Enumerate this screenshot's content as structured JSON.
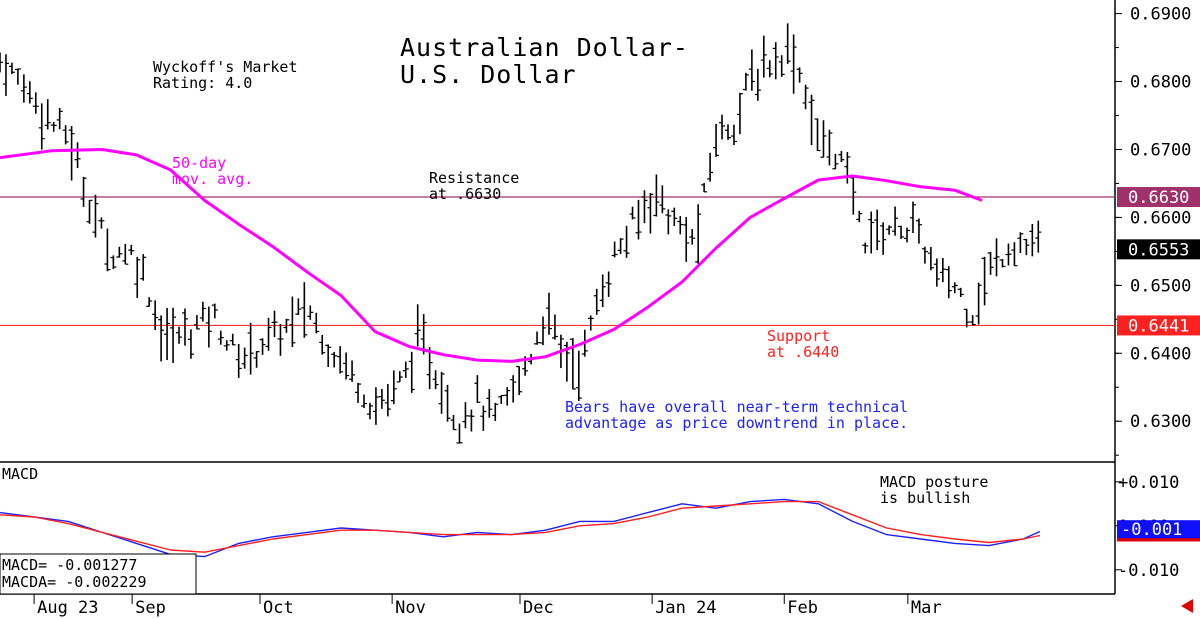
{
  "chart_data": [
    {
      "type": "ohlc",
      "title": "Australian Dollar-\nU.S. Dollar",
      "subtitle": "Wyckoff's Market\nRating: 4.0",
      "y_ticks": [
        0.63,
        0.64,
        0.65,
        0.66,
        0.67,
        0.68,
        0.69
      ],
      "y_tick_labels": [
        "0.6300",
        "0.6400",
        "0.6500",
        "0.6600",
        "0.6700",
        "0.6800",
        "0.6900"
      ],
      "ylim": [
        0.624,
        0.692
      ],
      "x_labels": [
        "Aug 23",
        "Sep",
        "Oct",
        "Nov",
        "Dec",
        "Jan 24",
        "Feb",
        "Mar"
      ],
      "horizontal_lines": [
        {
          "value": 0.663,
          "tag": "0.6630",
          "color": "#a0306a",
          "tag_bg": "#a0306a"
        },
        {
          "value": 0.6441,
          "tag": "0.6441",
          "color": "#ff3030",
          "tag_bg": "#ff2020"
        }
      ],
      "last_price": {
        "value": 0.6553,
        "tag": "0.6553",
        "tag_bg": "#000000"
      },
      "annotations": {
        "ma_label": "50-day\nmov. avg.",
        "resistance": "Resistance\nat .6630",
        "support": "Support\nat .6440",
        "comment": "Bears have overall near-term technical\nadvantage as price downtrend in place."
      },
      "colors": {
        "price_bars": "#000000",
        "moving_average": "#ff00ff",
        "comment": "#2020ff",
        "support_text": "#ff2020"
      },
      "moving_average_50d": [
        [
          0,
          0.6688
        ],
        [
          15,
          0.6698
        ],
        [
          30,
          0.67
        ],
        [
          40,
          0.6692
        ],
        [
          50,
          0.667
        ],
        [
          60,
          0.6625
        ],
        [
          70,
          0.659
        ],
        [
          80,
          0.6557
        ],
        [
          90,
          0.652
        ],
        [
          100,
          0.6485
        ],
        [
          110,
          0.6432
        ],
        [
          120,
          0.641
        ],
        [
          130,
          0.6398
        ],
        [
          140,
          0.639
        ],
        [
          150,
          0.6388
        ],
        [
          160,
          0.6395
        ],
        [
          170,
          0.6413
        ],
        [
          180,
          0.6435
        ],
        [
          190,
          0.6468
        ],
        [
          200,
          0.6505
        ],
        [
          210,
          0.6555
        ],
        [
          220,
          0.66
        ],
        [
          230,
          0.6628
        ],
        [
          240,
          0.6655
        ],
        [
          250,
          0.6661
        ],
        [
          260,
          0.6654
        ],
        [
          270,
          0.6645
        ],
        [
          280,
          0.664
        ],
        [
          288,
          0.6625
        ]
      ],
      "price_path": [
        [
          0,
          0.683
        ],
        [
          8,
          0.679
        ],
        [
          15,
          0.674
        ],
        [
          20,
          0.672
        ],
        [
          25,
          0.664
        ],
        [
          32,
          0.655
        ],
        [
          38,
          0.655
        ],
        [
          42,
          0.652
        ],
        [
          48,
          0.642
        ],
        [
          55,
          0.643
        ],
        [
          62,
          0.646
        ],
        [
          70,
          0.639
        ],
        [
          78,
          0.642
        ],
        [
          85,
          0.644
        ],
        [
          90,
          0.647
        ],
        [
          95,
          0.642
        ],
        [
          102,
          0.638
        ],
        [
          110,
          0.632
        ],
        [
          118,
          0.636
        ],
        [
          123,
          0.642
        ],
        [
          128,
          0.637
        ],
        [
          134,
          0.63
        ],
        [
          140,
          0.633
        ],
        [
          145,
          0.63
        ],
        [
          150,
          0.634
        ],
        [
          155,
          0.639
        ],
        [
          160,
          0.646
        ],
        [
          165,
          0.64
        ],
        [
          170,
          0.638
        ],
        [
          175,
          0.647
        ],
        [
          180,
          0.654
        ],
        [
          186,
          0.659
        ],
        [
          192,
          0.664
        ],
        [
          198,
          0.659
        ],
        [
          204,
          0.656
        ],
        [
          210,
          0.672
        ],
        [
          215,
          0.674
        ],
        [
          220,
          0.68
        ],
        [
          226,
          0.683
        ],
        [
          232,
          0.685
        ],
        [
          236,
          0.679
        ],
        [
          240,
          0.671
        ],
        [
          245,
          0.67
        ],
        [
          250,
          0.664
        ],
        [
          253,
          0.657
        ],
        [
          258,
          0.658
        ],
        [
          265,
          0.659
        ],
        [
          270,
          0.657
        ],
        [
          275,
          0.651
        ],
        [
          280,
          0.65
        ],
        [
          285,
          0.646
        ],
        [
          290,
          0.652
        ],
        [
          296,
          0.656
        ],
        [
          300,
          0.656
        ],
        [
          305,
          0.6553
        ]
      ]
    },
    {
      "type": "line",
      "title": "MACD",
      "y_ticks": [
        0.01,
        0.0,
        -0.01
      ],
      "y_tick_labels": [
        "+0.010",
        "0.000",
        "-0.010"
      ],
      "ylim": [
        -0.0155,
        0.0145
      ],
      "annotation": "MACD posture\nis bullish",
      "readout": [
        {
          "label": "MACD=",
          "value": "-0.001277"
        },
        {
          "label": "MACDA=",
          "value": "-0.002229"
        }
      ],
      "current_tag": {
        "value": -0.001,
        "tag": "-0.001",
        "tag_bg": "#1010ff"
      },
      "signal_tag": {
        "value": -0.0022,
        "tag_bg": "#e00000"
      },
      "series": [
        {
          "name": "MACD",
          "color": "#2020ff",
          "points": [
            [
              0,
              0.003
            ],
            [
              10,
              0.002
            ],
            [
              20,
              0.001
            ],
            [
              30,
              -0.0015
            ],
            [
              40,
              -0.004
            ],
            [
              50,
              -0.0065
            ],
            [
              60,
              -0.007
            ],
            [
              70,
              -0.004
            ],
            [
              80,
              -0.0025
            ],
            [
              90,
              -0.0015
            ],
            [
              100,
              -0.0005
            ],
            [
              110,
              -0.001
            ],
            [
              120,
              -0.0015
            ],
            [
              130,
              -0.0025
            ],
            [
              140,
              -0.0015
            ],
            [
              150,
              -0.002
            ],
            [
              160,
              -0.001
            ],
            [
              170,
              0.001
            ],
            [
              180,
              0.001
            ],
            [
              190,
              0.003
            ],
            [
              200,
              0.005
            ],
            [
              210,
              0.004
            ],
            [
              220,
              0.0055
            ],
            [
              230,
              0.006
            ],
            [
              240,
              0.005
            ],
            [
              250,
              0.001
            ],
            [
              260,
              -0.002
            ],
            [
              270,
              -0.003
            ],
            [
              280,
              -0.004
            ],
            [
              290,
              -0.0045
            ],
            [
              300,
              -0.003
            ],
            [
              305,
              -0.0013
            ]
          ]
        },
        {
          "name": "MACDA",
          "color": "#ff2020",
          "points": [
            [
              0,
              0.0025
            ],
            [
              10,
              0.002
            ],
            [
              20,
              0.0005
            ],
            [
              30,
              -0.0015
            ],
            [
              40,
              -0.0035
            ],
            [
              50,
              -0.0055
            ],
            [
              60,
              -0.006
            ],
            [
              70,
              -0.0045
            ],
            [
              80,
              -0.003
            ],
            [
              90,
              -0.002
            ],
            [
              100,
              -0.001
            ],
            [
              110,
              -0.001
            ],
            [
              120,
              -0.0015
            ],
            [
              130,
              -0.002
            ],
            [
              140,
              -0.002
            ],
            [
              150,
              -0.002
            ],
            [
              160,
              -0.0015
            ],
            [
              170,
              0.0
            ],
            [
              180,
              0.0005
            ],
            [
              190,
              0.002
            ],
            [
              200,
              0.004
            ],
            [
              210,
              0.0045
            ],
            [
              220,
              0.005
            ],
            [
              230,
              0.0055
            ],
            [
              240,
              0.0055
            ],
            [
              250,
              0.0025
            ],
            [
              260,
              -0.0005
            ],
            [
              270,
              -0.002
            ],
            [
              280,
              -0.003
            ],
            [
              290,
              -0.0038
            ],
            [
              300,
              -0.003
            ],
            [
              305,
              -0.0022
            ]
          ]
        }
      ]
    }
  ]
}
